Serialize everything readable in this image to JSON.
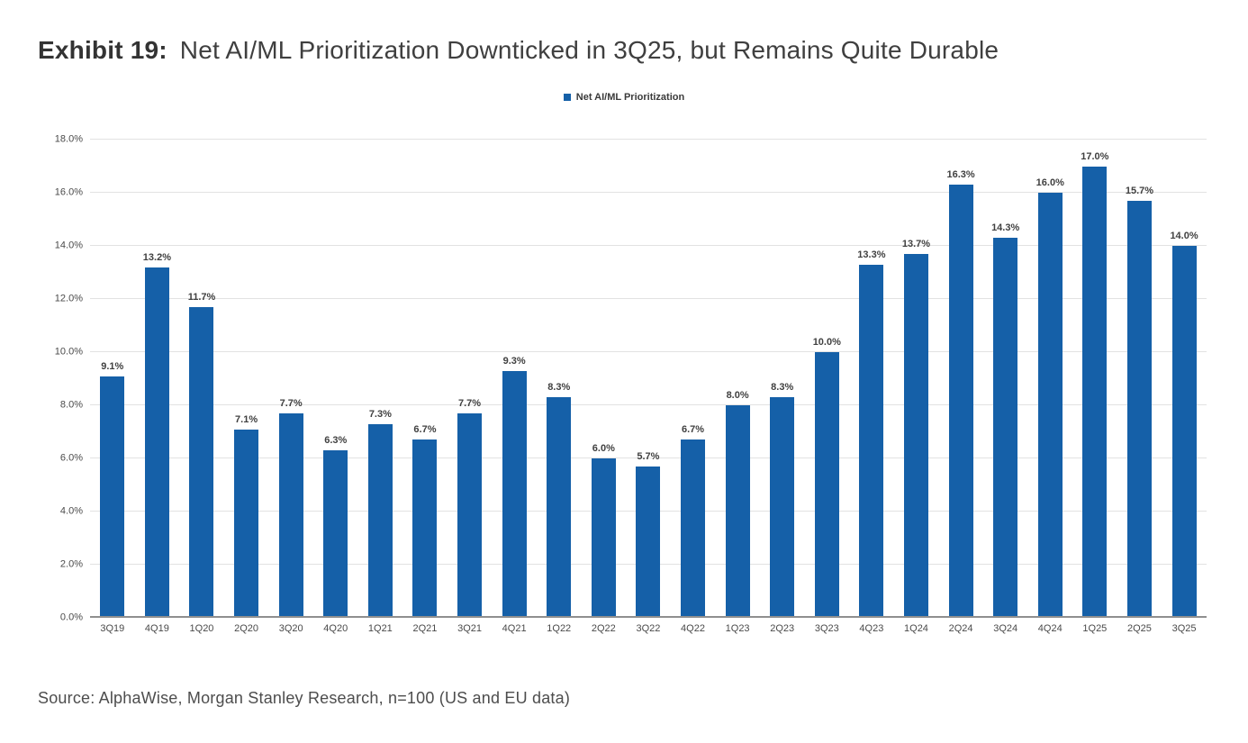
{
  "page": {
    "title_prefix": "Exhibit 19:",
    "title_text": "Net AI/ML Prioritization Downticked in 3Q25, but Remains Quite Durable",
    "source_text": "Source: AlphaWise, Morgan Stanley Research, n=100 (US and EU data)"
  },
  "legend": {
    "label": "Net AI/ML Prioritization",
    "marker_color": "#1560A8",
    "marker_icon": "legend-square-icon"
  },
  "colors": {
    "bar": "#1560A8",
    "gridline": "#e2e2e2",
    "baseline": "#8f8f8f",
    "title": "#3f3f3f",
    "axis_text": "#4a4a4a"
  },
  "chart_data": {
    "type": "bar",
    "title": "Net AI/ML Prioritization Downticked in 3Q25, but Remains Quite Durable",
    "series_name": "Net AI/ML Prioritization",
    "categories": [
      "3Q19",
      "4Q19",
      "1Q20",
      "2Q20",
      "3Q20",
      "4Q20",
      "1Q21",
      "2Q21",
      "3Q21",
      "4Q21",
      "1Q22",
      "2Q22",
      "3Q22",
      "4Q22",
      "1Q23",
      "2Q23",
      "3Q23",
      "4Q23",
      "1Q24",
      "2Q24",
      "3Q24",
      "4Q24",
      "1Q25",
      "2Q25",
      "3Q25"
    ],
    "values": [
      9.1,
      13.2,
      11.7,
      7.1,
      7.7,
      6.3,
      7.3,
      6.7,
      7.7,
      9.3,
      8.3,
      6.0,
      5.7,
      6.7,
      8.0,
      8.3,
      10.0,
      13.3,
      13.7,
      16.3,
      14.3,
      16.0,
      17.0,
      15.7,
      14.0
    ],
    "value_labels": [
      "9.1%",
      "13.2%",
      "11.7%",
      "7.1%",
      "7.7%",
      "6.3%",
      "7.3%",
      "6.7%",
      "7.7%",
      "9.3%",
      "8.3%",
      "6.0%",
      "5.7%",
      "6.7%",
      "8.0%",
      "8.3%",
      "10.0%",
      "13.3%",
      "13.7%",
      "16.3%",
      "14.3%",
      "16.0%",
      "17.0%",
      "15.7%",
      "14.0%"
    ],
    "xlabel": "",
    "ylabel": "",
    "ylim": [
      0,
      18
    ],
    "ytick_step": 2,
    "ytick_labels": [
      "0.0%",
      "2.0%",
      "4.0%",
      "6.0%",
      "8.0%",
      "10.0%",
      "12.0%",
      "14.0%",
      "16.0%",
      "18.0%"
    ],
    "grid": true,
    "legend_position": "top-center",
    "bar_color": "#1560A8"
  }
}
